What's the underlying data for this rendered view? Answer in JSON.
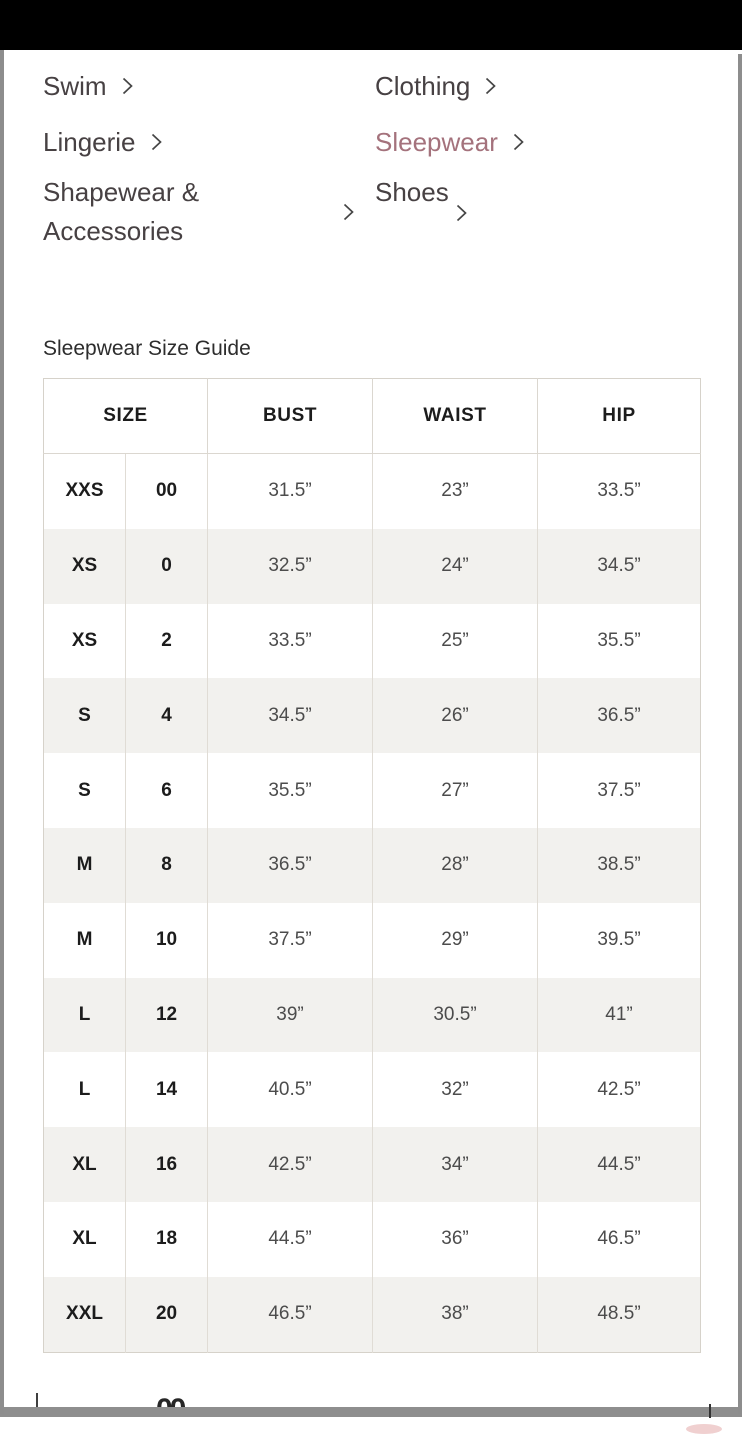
{
  "nav": {
    "items": [
      {
        "label": "Swim",
        "active": false
      },
      {
        "label": "Clothing",
        "active": false
      },
      {
        "label": "Lingerie",
        "active": false
      },
      {
        "label": "Sleepwear",
        "active": true
      },
      {
        "label": "Shapewear & Accessories",
        "active": false
      },
      {
        "label": "Shoes",
        "active": false
      }
    ],
    "chevron_icon": "chevron-right",
    "active_color": "#a4727c",
    "text_color": "#474143"
  },
  "page": {
    "heading": "Sleepwear Size Guide"
  },
  "table": {
    "headers": [
      "SIZE",
      "BUST",
      "WAIST",
      "HIP"
    ],
    "rows": [
      {
        "size": "XXS",
        "num": "00",
        "bust": "31.5”",
        "waist": "23”",
        "hip": "33.5”"
      },
      {
        "size": "XS",
        "num": "0",
        "bust": "32.5”",
        "waist": "24”",
        "hip": "34.5”"
      },
      {
        "size": "XS",
        "num": "2",
        "bust": "33.5”",
        "waist": "25”",
        "hip": "35.5”"
      },
      {
        "size": "S",
        "num": "4",
        "bust": "34.5”",
        "waist": "26”",
        "hip": "36.5”"
      },
      {
        "size": "S",
        "num": "6",
        "bust": "35.5”",
        "waist": "27”",
        "hip": "37.5”"
      },
      {
        "size": "M",
        "num": "8",
        "bust": "36.5”",
        "waist": "28”",
        "hip": "38.5”"
      },
      {
        "size": "M",
        "num": "10",
        "bust": "37.5”",
        "waist": "29”",
        "hip": "39.5”"
      },
      {
        "size": "L",
        "num": "12",
        "bust": "39”",
        "waist": "30.5”",
        "hip": "41”"
      },
      {
        "size": "L",
        "num": "14",
        "bust": "40.5”",
        "waist": "32”",
        "hip": "42.5”"
      },
      {
        "size": "XL",
        "num": "16",
        "bust": "42.5”",
        "waist": "34”",
        "hip": "44.5”"
      },
      {
        "size": "XL",
        "num": "18",
        "bust": "44.5”",
        "waist": "36”",
        "hip": "46.5”"
      },
      {
        "size": "XXL",
        "num": "20",
        "bust": "46.5”",
        "waist": "38”",
        "hip": "48.5”"
      }
    ],
    "alt_row_color": "#f2f1ee",
    "border_color": "#dbd7d0"
  },
  "background_fragments": {
    "partial_digits": "00"
  },
  "colors": {
    "top_bar": "#000000",
    "edge_strip": "#8d8d8d",
    "bottom_bar": "#8e8e8e"
  }
}
